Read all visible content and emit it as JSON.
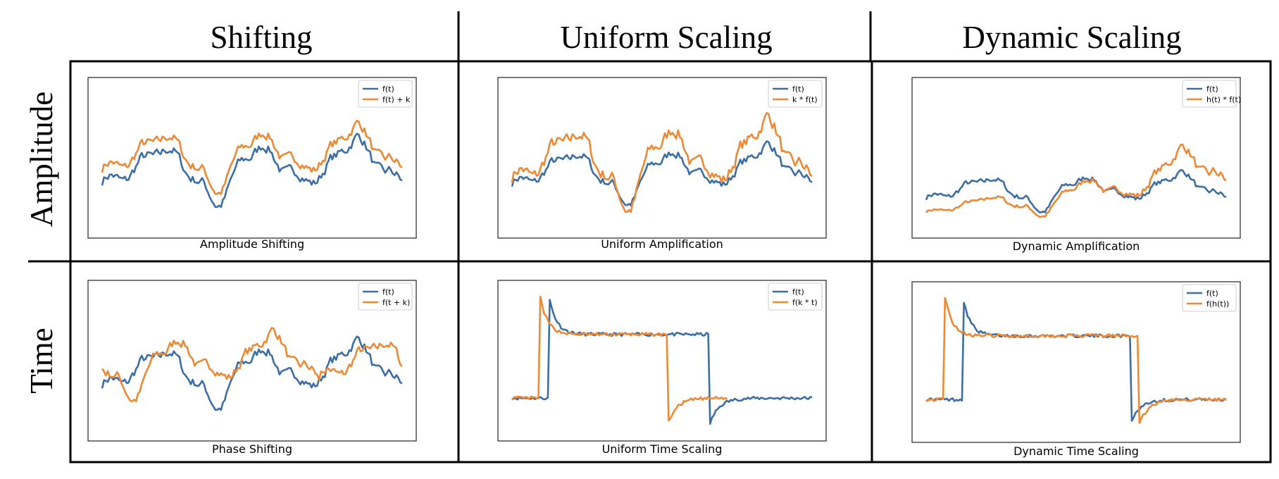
{
  "columns": [
    "Shifting",
    "Uniform Scaling",
    "Dynamic Scaling"
  ],
  "rows": [
    "Amplitude",
    "Time"
  ],
  "colors": {
    "series_a": "#3b6ea5",
    "series_b": "#ee8833"
  },
  "panels": [
    {
      "caption": "Amplitude Shifting",
      "legend": [
        "f(t)",
        "f(t) + k"
      ]
    },
    {
      "caption": "Uniform Amplification",
      "legend": [
        "f(t)",
        "k * f(t)"
      ]
    },
    {
      "caption": "Dynamic Amplification",
      "legend": [
        "f(t)",
        "h(t) * f(t)"
      ]
    },
    {
      "caption": "Phase Shifting",
      "legend": [
        "f(t)",
        "f(t + k)"
      ]
    },
    {
      "caption": "Uniform Time Scaling",
      "legend": [
        "f(t)",
        "f(k * t)"
      ]
    },
    {
      "caption": "Dynamic Time Scaling",
      "legend": [
        "f(t)",
        "f(h(t))"
      ]
    }
  ]
}
